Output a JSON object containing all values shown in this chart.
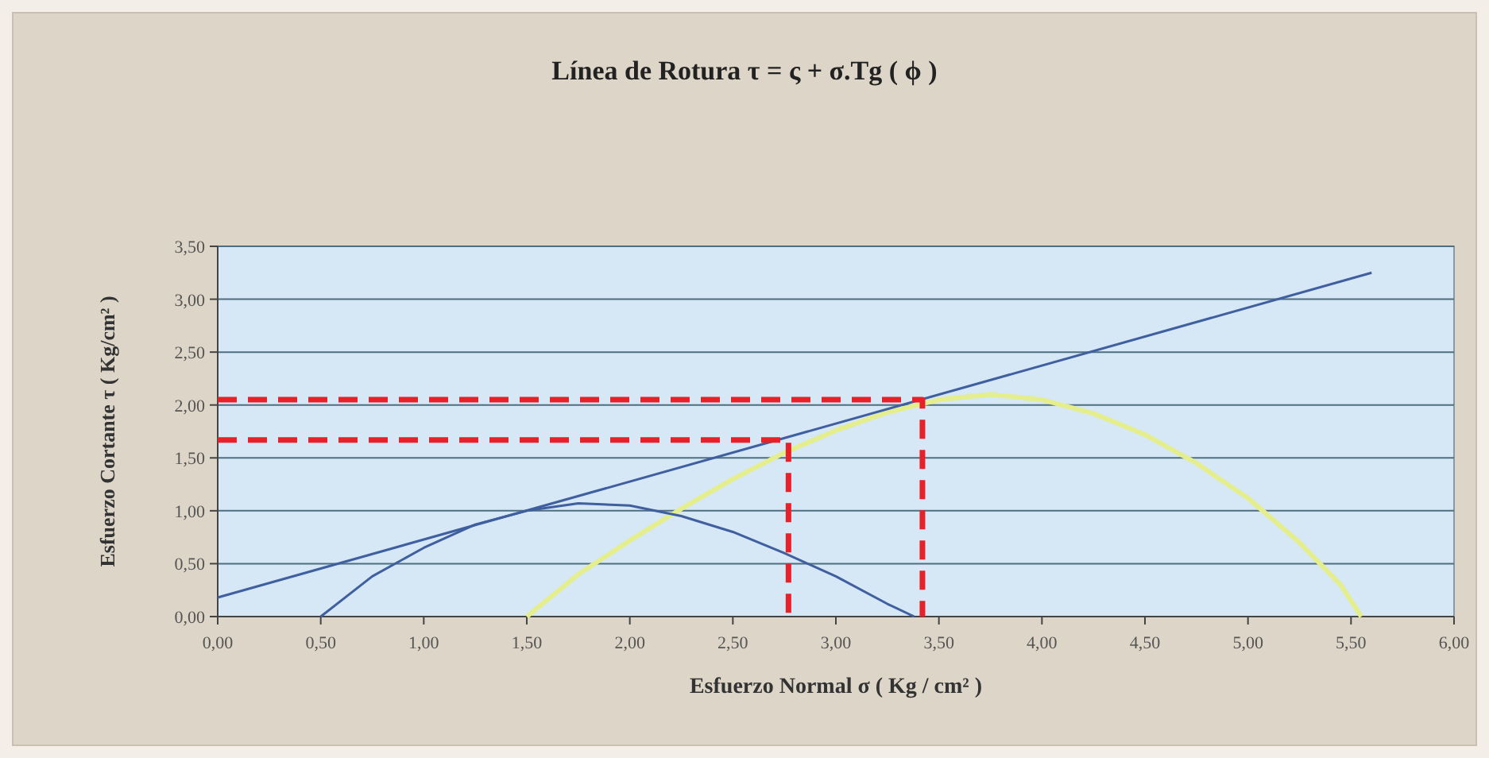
{
  "chart_data": {
    "type": "line",
    "title": "Línea de Rotura   τ = ς + σ.Tg ( ϕ )",
    "xlabel": "Esfuerzo Normal  σ ( Kg / cm² )",
    "ylabel": "Esfuerzo Cortante  τ ( Kg/cm² )",
    "xlim": [
      0,
      6
    ],
    "ylim": [
      0,
      3.5
    ],
    "xticks": [
      {
        "value": 0,
        "label": "0,00"
      },
      {
        "value": 0.5,
        "label": "0,50"
      },
      {
        "value": 1,
        "label": "1,00"
      },
      {
        "value": 1.5,
        "label": "1,50"
      },
      {
        "value": 2,
        "label": "2,00"
      },
      {
        "value": 2.5,
        "label": "2,50"
      },
      {
        "value": 3,
        "label": "3,00"
      },
      {
        "value": 3.5,
        "label": "3,50"
      },
      {
        "value": 4,
        "label": "4,00"
      },
      {
        "value": 4.5,
        "label": "4,50"
      },
      {
        "value": 5,
        "label": "5,00"
      },
      {
        "value": 5.5,
        "label": "5,50"
      },
      {
        "value": 6,
        "label": "6,00"
      }
    ],
    "yticks": [
      {
        "value": 0,
        "label": "0,00"
      },
      {
        "value": 0.5,
        "label": "0,50"
      },
      {
        "value": 1,
        "label": "1,00"
      },
      {
        "value": 1.5,
        "label": "1,50"
      },
      {
        "value": 2,
        "label": "2,00"
      },
      {
        "value": 2.5,
        "label": "2,50"
      },
      {
        "value": 3,
        "label": "3,00"
      },
      {
        "value": 3.5,
        "label": "3,50"
      }
    ],
    "grid": "y",
    "marker": "none",
    "series": [
      {
        "color": "#e4ee8c",
        "x": [
          1.5,
          1.75,
          2.0,
          2.25,
          2.5,
          2.75,
          3.0,
          3.25,
          3.5,
          3.75,
          4.0,
          4.25,
          4.5,
          4.75,
          5.0,
          5.25,
          5.45,
          5.55
        ],
        "values": [
          0,
          0.4,
          0.72,
          1.02,
          1.3,
          1.55,
          1.76,
          1.93,
          2.05,
          2.1,
          2.05,
          1.92,
          1.72,
          1.45,
          1.12,
          0.7,
          0.3,
          0
        ],
        "line_style": "solid"
      },
      {
        "color": "#3f5f9f",
        "x": [
          0.5,
          0.75,
          1.0,
          1.25,
          1.5,
          1.75,
          2.0,
          2.25,
          2.5,
          2.75,
          3.0,
          3.25,
          3.38
        ],
        "values": [
          0,
          0.38,
          0.65,
          0.87,
          1.0,
          1.07,
          1.05,
          0.95,
          0.8,
          0.6,
          0.38,
          0.12,
          0
        ],
        "line_style": "solid"
      },
      {
        "color": "#3f5f9f",
        "x": [
          0,
          5.6
        ],
        "values": [
          0.18,
          3.25
        ],
        "line_style": "solid"
      },
      {
        "color": "#e8202a",
        "x": [
          0,
          2.77,
          2.77
        ],
        "values": [
          1.67,
          1.67,
          0
        ],
        "line_style": "dashed"
      },
      {
        "color": "#e8202a",
        "x": [
          0,
          3.42,
          3.42
        ],
        "values": [
          2.05,
          2.05,
          0
        ],
        "line_style": "dashed"
      }
    ]
  }
}
